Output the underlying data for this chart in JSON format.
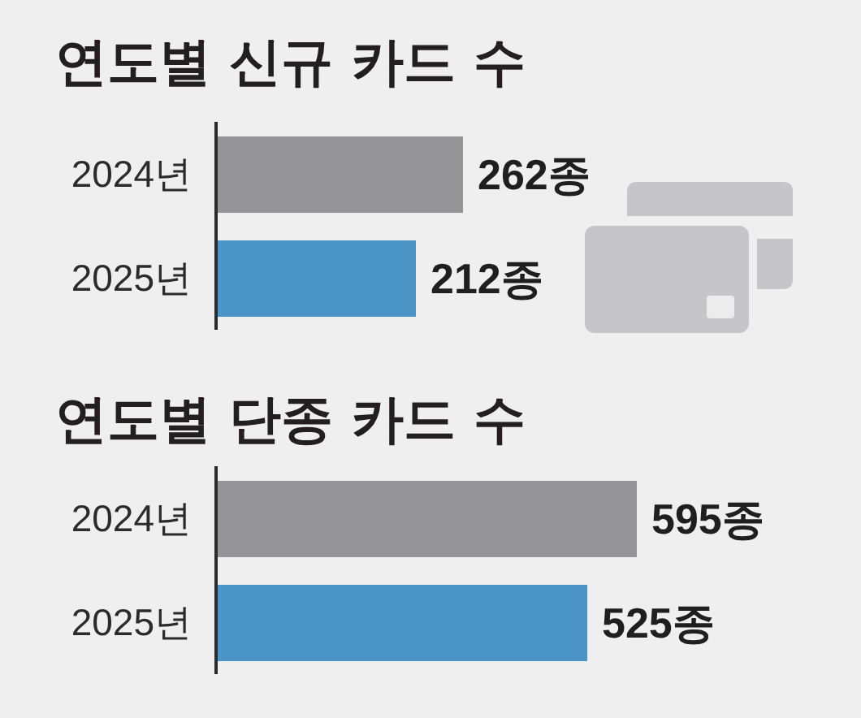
{
  "chart_data": [
    {
      "type": "bar",
      "orientation": "horizontal",
      "title": "연도별 신규 카드 수",
      "categories": [
        "2024년",
        "2025년"
      ],
      "values": [
        262,
        212
      ],
      "colors": [
        "#949498",
        "#4b95c6"
      ],
      "value_labels": [
        "262종",
        "212종"
      ],
      "tick_labels": "y"
    },
    {
      "type": "bar",
      "orientation": "horizontal",
      "title": "연도별 단종 카드 수",
      "categories": [
        "2024년",
        "2025년"
      ],
      "values": [
        595,
        525
      ],
      "colors": [
        "#949498",
        "#4b95c6"
      ],
      "value_labels": [
        "595종",
        "525종"
      ],
      "tick_labels": "y"
    }
  ]
}
